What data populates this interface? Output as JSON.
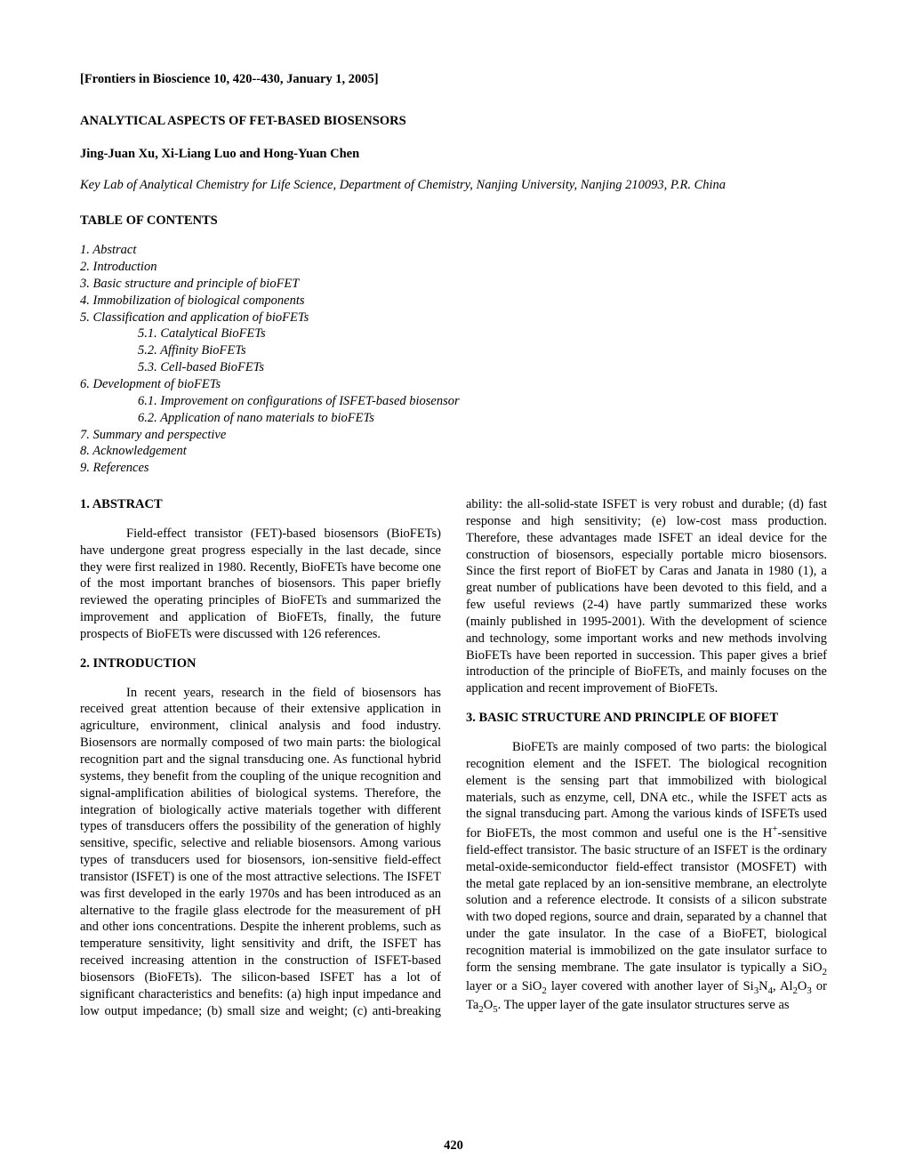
{
  "header": "[Frontiers in Bioscience 10, 420--430, January 1, 2005]",
  "title": "ANALYTICAL ASPECTS OF FET-BASED BIOSENSORS",
  "authors": "Jing-Juan Xu, Xi-Liang Luo and Hong-Yuan Chen",
  "affiliation": "Key Lab of Analytical Chemistry for Life Science, Department of Chemistry, Nanjing University, Nanjing 210093, P.R. China",
  "toc_heading": "TABLE OF CONTENTS",
  "toc": [
    {
      "lvl": 1,
      "text": "1. Abstract"
    },
    {
      "lvl": 1,
      "text": "2. Introduction"
    },
    {
      "lvl": 1,
      "text": "3. Basic structure and principle of bioFET"
    },
    {
      "lvl": 1,
      "text": "4. Immobilization of biological components"
    },
    {
      "lvl": 1,
      "text": "5. Classification and application of bioFETs"
    },
    {
      "lvl": 2,
      "text": "5.1. Catalytical BioFETs"
    },
    {
      "lvl": 2,
      "text": "5.2. Affinity BioFETs"
    },
    {
      "lvl": 2,
      "text": "5.3. Cell-based BioFETs"
    },
    {
      "lvl": 1,
      "text": "6. Development of bioFETs"
    },
    {
      "lvl": 2,
      "text": "6.1. Improvement on configurations of ISFET-based biosensor"
    },
    {
      "lvl": 2,
      "text": "6.2. Application of nano materials to bioFETs"
    },
    {
      "lvl": 1,
      "text": "7. Summary and perspective"
    },
    {
      "lvl": 1,
      "text": "8. Acknowledgement"
    },
    {
      "lvl": 1,
      "text": "9. References"
    }
  ],
  "sections": {
    "abstract_head": "1. ABSTRACT",
    "abstract_body": "Field-effect transistor (FET)-based biosensors (BioFETs) have undergone great progress especially in the last decade, since they were first realized in 1980. Recently, BioFETs have become one of the most important branches of biosensors. This paper briefly reviewed the operating principles of BioFETs and summarized the improvement and application of BioFETs, finally, the future prospects of BioFETs were discussed with 126 references.",
    "intro_head": "2. INTRODUCTION",
    "intro_body_1": "In recent years, research in the field of biosensors has received great attention because of their extensive application in agriculture, environment, clinical analysis and food industry. Biosensors are normally composed of two main parts: the biological recognition part and the signal transducing one. As functional hybrid systems, they benefit from the coupling of the unique recognition and signal-amplification abilities of biological systems. Therefore, the integration of biologically active materials together with different types of transducers offers the possibility of the generation of highly sensitive, specific, selective and reliable biosensors. Among various types of transducers used for biosensors, ion-sensitive field-effect transistor (ISFET) is one of the most attractive selections. The ISFET was first developed in the early 1970s and has been introduced as an alternative to the fragile glass electrode for the measurement of pH and other ions concentrations. Despite the inherent problems, such as temperature sensitivity, light sensitivity and drift, the ISFET has received increasing attention in the construction of ISFET-based biosensors (BioFETs). The silicon-based ISFET has a lot of significant characteristics and benefits: (a) high input impedance and low output impedance; (b) small size and weight; (c) anti-breaking ability: the all-solid-state ISFET is very robust and durable; (d) fast response and high sensitivity; (e) low-cost mass production. Therefore, these advantages made ISFET an ideal device for the construction of biosensors, especially portable micro biosensors. Since the first report of BioFET by Caras and Janata in 1980 (1), a great number of publications have been devoted to this field, and a few useful reviews (2-4) have partly summarized these works (mainly published in 1995-2001). With the development of science and technology, some important works and new methods involving BioFETs have been reported in succession. This paper gives a brief introduction of the principle of BioFETs, and mainly focuses on the application and recent improvement of BioFETs.",
    "struct_head": "3. BASIC STRUCTURE AND PRINCIPLE OF BIOFET",
    "struct_body_pre": "BioFETs are mainly composed of two parts: the biological recognition element and the ISFET. The biological recognition element is the sensing part that immobilized with biological materials, such as enzyme, cell, DNA etc., while the ISFET acts as the signal transducing part. Among the various kinds of ISFETs used for BioFETs, the most common and useful one is the H",
    "struct_body_post": "-sensitive field-effect transistor. The basic structure of an ISFET is the ordinary metal-oxide-semiconductor field-effect transistor (MOSFET) with the metal gate replaced by an ion-sensitive membrane, an electrolyte solution and a reference electrode. It consists of a silicon substrate with two doped regions, source and drain, separated by a channel that under the gate insulator. In the case of a BioFET, biological recognition material is immobilized on the gate insulator surface to form the sensing membrane. The gate insulator is typically a ",
    "struct_body_end": ". The upper layer of the gate insulator structures serve as",
    "chem": {
      "sio2": "SiO",
      "si3n4": "Si",
      "al2o3": "Al",
      "ta2o5": "Ta",
      "o": "O",
      "n": "N",
      "h": "H"
    }
  },
  "page_number": "420"
}
